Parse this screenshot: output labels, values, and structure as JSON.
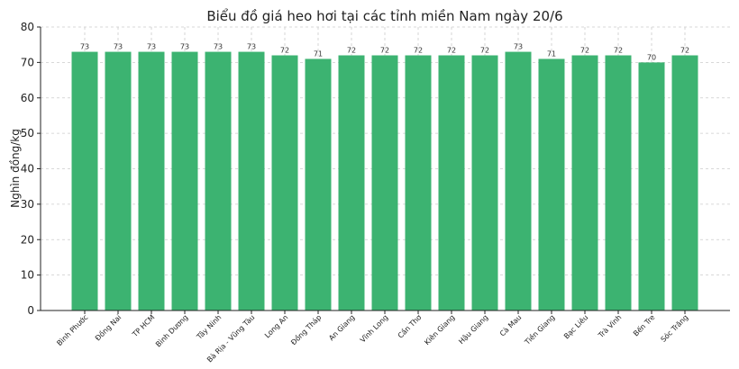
{
  "chart_data": {
    "type": "bar",
    "title": "Biểu đồ giá heo hơi tại các tỉnh miền Nam ngày 20/6",
    "xlabel": "",
    "ylabel": "Nghìn đồng/kg",
    "ylim": [
      0,
      80
    ],
    "yticks": [
      0,
      10,
      20,
      30,
      40,
      50,
      60,
      70,
      80
    ],
    "grid": true,
    "bar_color": "#3cb371",
    "categories": [
      "Bình Phước",
      "Đồng Nai",
      "TP HCM",
      "Bình Dương",
      "Tây Ninh",
      "Bà Rịa - Vũng Tàu",
      "Long An",
      "Đồng Tháp",
      "An Giang",
      "Vĩnh Long",
      "Cần Thơ",
      "Kiên Giang",
      "Hậu Giang",
      "Cà Mau",
      "Tiền Giang",
      "Bạc Liêu",
      "Trà Vinh",
      "Bến Tre",
      "Sóc Trăng"
    ],
    "values": [
      73,
      73,
      73,
      73,
      73,
      73,
      72,
      71,
      72,
      72,
      72,
      72,
      72,
      73,
      71,
      72,
      72,
      70,
      72
    ]
  }
}
